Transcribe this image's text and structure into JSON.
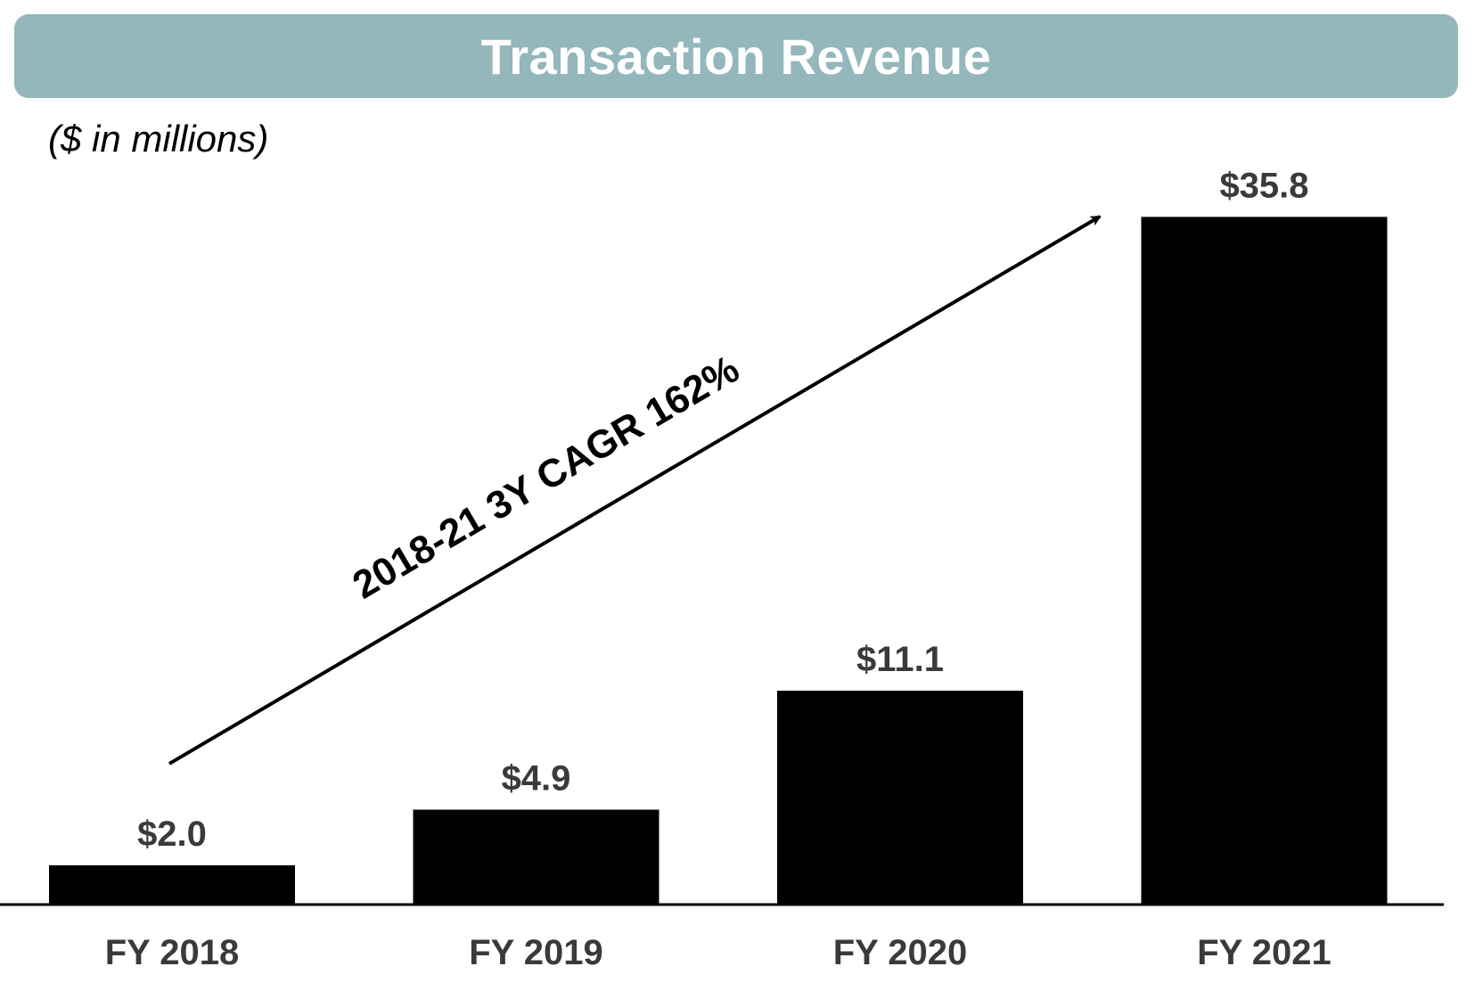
{
  "colors": {
    "banner": "#93b7bb",
    "bar": "#000000",
    "value_label": "#3a3a3a",
    "tick_label": "#3a3a3a",
    "axis": "#000000"
  },
  "chart_data": {
    "type": "bar",
    "title": "Transaction Revenue",
    "subtitle": "($ in millions)",
    "categories": [
      "FY 2018",
      "FY 2019",
      "FY 2020",
      "FY 2021"
    ],
    "values": [
      2.0,
      4.9,
      11.1,
      35.8
    ],
    "value_labels": [
      "$2.0",
      "$4.9",
      "$11.1",
      "$35.8"
    ],
    "ylim": [
      0,
      38
    ],
    "grid": false,
    "legend": "none",
    "annotation": {
      "text": "2018-21 3Y CAGR 162%",
      "type": "arrow",
      "from_category": "FY 2018",
      "to_category": "FY 2021"
    }
  }
}
